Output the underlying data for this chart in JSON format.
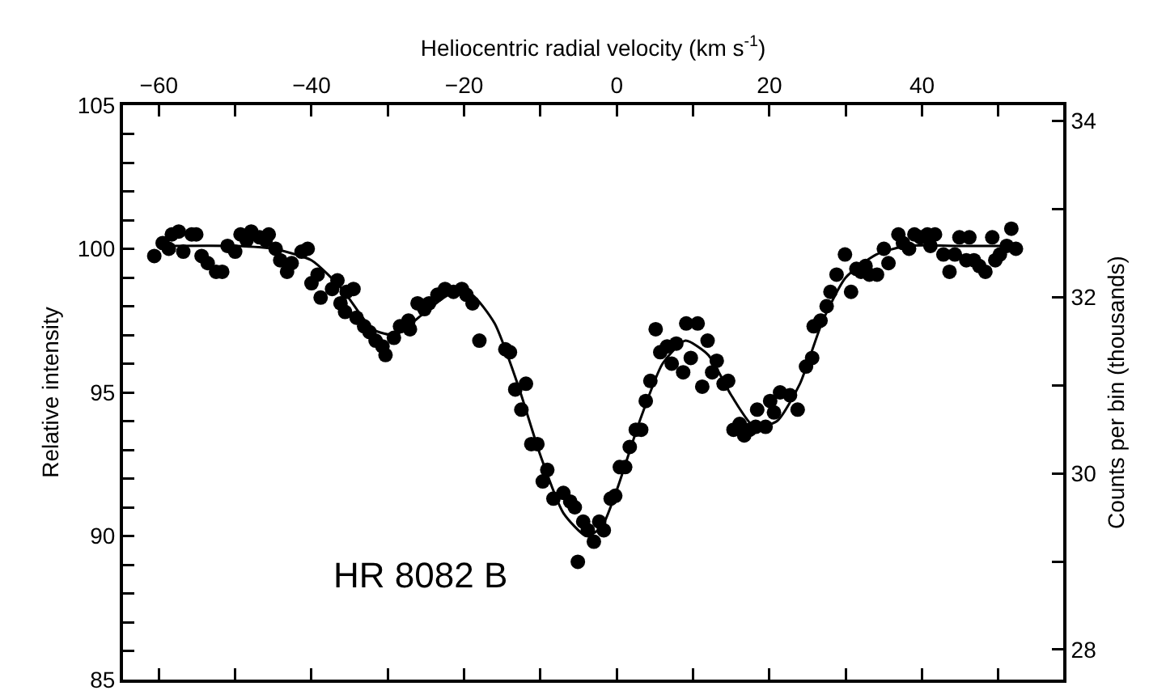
{
  "chart_data": {
    "type": "scatter",
    "xlabel": "Heliocentric radial velocity (km s$^{-1}$)",
    "ylabel": "Relative intensity",
    "y2label": "Counts per bin (thousands)",
    "annotations": [
      "HR 8082 B"
    ],
    "xlim": [
      -64.7,
      58.5
    ],
    "xticks": [
      -60,
      {
        "value": -50,
        "label": null
      },
      -40,
      {
        "value": -30,
        "label": null
      },
      -20,
      {
        "value": -10,
        "label": null
      },
      0,
      {
        "value": 10,
        "label": null
      },
      20,
      {
        "value": 30,
        "label": null
      },
      40,
      {
        "value": 50,
        "label": null
      }
    ],
    "ylim": [
      85,
      105
    ],
    "yticks": [
      85,
      {
        "value": 86,
        "label": null
      },
      {
        "value": 87,
        "label": null
      },
      {
        "value": 88,
        "label": null
      },
      {
        "value": 89,
        "label": null
      },
      90,
      {
        "value": 91,
        "label": null
      },
      {
        "value": 92,
        "label": null
      },
      {
        "value": 93,
        "label": null
      },
      {
        "value": 94,
        "label": null
      },
      95,
      {
        "value": 96,
        "label": null
      },
      {
        "value": 97,
        "label": null
      },
      {
        "value": 98,
        "label": null
      },
      {
        "value": 99,
        "label": null
      },
      100,
      {
        "value": 101,
        "label": null
      },
      {
        "value": 102,
        "label": null
      },
      {
        "value": 103,
        "label": null
      },
      {
        "value": 104,
        "label": null
      },
      105
    ],
    "y2lim": [
      27.66,
      34.18
    ],
    "y2ticks": [
      28,
      {
        "value": 29,
        "label": null
      },
      30,
      {
        "value": 31,
        "label": null
      },
      32,
      {
        "value": 33,
        "label": null
      },
      34
    ],
    "grid": false,
    "series": [
      {
        "type": "scatter",
        "color": "#000000",
        "marker": "circle",
        "x": [
          -60.6,
          -59.5,
          -58.3,
          -57.4,
          -58.7,
          -56.8,
          -55.7,
          -55.1,
          -54.4,
          -53.6,
          -52.5,
          -51.7,
          -51.0,
          -50.0,
          -49.3,
          -48.5,
          -47.9,
          -46.8,
          -46.0,
          -45.6,
          -44.7,
          -44.1,
          -43.2,
          -42.6,
          -41.3,
          -40.5,
          -40.0,
          -39.2,
          -38.8,
          -37.3,
          -36.6,
          -36.2,
          -35.4,
          -34.5,
          -35.6,
          -34.1,
          -33.1,
          -32.4,
          -31.6,
          -30.7,
          -30.3,
          -29.2,
          -28.4,
          -27.3,
          -27.1,
          -26.1,
          -25.2,
          -24.6,
          -23.5,
          -22.5,
          -21.4,
          -20.3,
          -19.7,
          -18.9,
          -18.0,
          -14.6,
          -14.0,
          -13.3,
          -11.9,
          -12.5,
          -11.2,
          -10.4,
          -9.1,
          -9.7,
          -8.3,
          -7.0,
          -6.1,
          -5.5,
          -4.4,
          -3.8,
          -5.1,
          -3.0,
          -2.3,
          -1.7,
          -0.8,
          -0.2,
          0.4,
          1.1,
          1.7,
          2.5,
          3.2,
          3.8,
          4.4,
          5.1,
          5.7,
          6.6,
          7.2,
          7.8,
          8.7,
          9.1,
          9.7,
          10.6,
          11.2,
          11.9,
          12.5,
          13.1,
          14.0,
          14.6,
          15.3,
          16.1,
          16.7,
          17.4,
          18.2,
          18.4,
          19.5,
          20.1,
          20.6,
          21.4,
          22.7,
          23.7,
          24.8,
          25.6,
          25.8,
          26.7,
          27.5,
          28.0,
          28.8,
          29.9,
          30.7,
          31.4,
          32.0,
          32.6,
          33.1,
          34.1,
          35.0,
          35.6,
          36.9,
          37.5,
          38.3,
          39.0,
          39.8,
          40.7,
          41.1,
          41.7,
          42.8,
          43.6,
          44.3,
          44.9,
          45.8,
          46.2,
          46.8,
          47.5,
          48.3,
          49.2,
          49.6,
          50.2,
          51.1,
          51.7,
          52.3
        ],
        "values": [
          99.75,
          100.2,
          100.5,
          100.6,
          100.0,
          99.9,
          100.5,
          100.5,
          99.75,
          99.5,
          99.2,
          99.2,
          100.1,
          99.9,
          100.5,
          100.3,
          100.6,
          100.4,
          100.3,
          100.5,
          100.0,
          99.6,
          99.2,
          99.5,
          99.9,
          100.0,
          98.8,
          99.1,
          98.3,
          98.6,
          98.9,
          98.1,
          98.5,
          98.6,
          97.8,
          97.6,
          97.3,
          97.1,
          96.8,
          96.6,
          96.3,
          96.9,
          97.3,
          97.5,
          97.2,
          98.1,
          97.9,
          98.1,
          98.4,
          98.6,
          98.5,
          98.6,
          98.4,
          98.1,
          96.8,
          96.5,
          96.4,
          95.1,
          95.3,
          94.4,
          93.2,
          93.2,
          92.3,
          91.9,
          91.3,
          91.5,
          91.2,
          91.0,
          90.5,
          90.2,
          89.1,
          89.8,
          90.5,
          90.2,
          91.3,
          91.4,
          92.4,
          92.4,
          93.1,
          93.7,
          93.7,
          94.7,
          95.4,
          97.2,
          96.4,
          96.6,
          96.0,
          96.7,
          95.7,
          97.4,
          96.2,
          97.4,
          95.2,
          96.8,
          95.7,
          96.1,
          95.3,
          95.4,
          93.7,
          93.9,
          93.5,
          93.7,
          93.8,
          94.4,
          93.8,
          94.7,
          94.3,
          95.0,
          94.9,
          94.4,
          95.9,
          96.2,
          97.3,
          97.5,
          98.0,
          98.5,
          99.1,
          99.8,
          98.5,
          99.3,
          99.2,
          99.4,
          99.1,
          99.1,
          100.0,
          99.5,
          100.5,
          100.2,
          100.0,
          100.5,
          100.4,
          100.5,
          100.1,
          100.5,
          99.8,
          99.2,
          99.8,
          100.4,
          99.6,
          100.4,
          99.6,
          99.4,
          99.2,
          100.4,
          99.6,
          99.8,
          100.1,
          100.7,
          100.0
        ]
      },
      {
        "type": "line",
        "color": "#000000",
        "marker": "none",
        "line_style": "solid",
        "x": [
          -60,
          -50,
          -45,
          -40,
          -36,
          -32,
          -29,
          -26,
          -22,
          -19,
          -16,
          -13,
          -10,
          -7,
          -4,
          -2,
          0,
          3,
          6,
          9,
          12,
          15,
          18,
          21,
          24,
          27,
          30,
          34,
          38,
          45,
          52
        ],
        "values": [
          100.1,
          100.1,
          100.0,
          99.6,
          98.6,
          97.2,
          97.0,
          97.6,
          98.4,
          98.4,
          97.4,
          95.3,
          92.8,
          90.8,
          90.0,
          90.3,
          91.6,
          94.0,
          96.0,
          96.8,
          96.3,
          94.9,
          93.8,
          94.0,
          95.3,
          97.5,
          99.0,
          99.8,
          100.1,
          100.1,
          100.1
        ]
      }
    ]
  }
}
